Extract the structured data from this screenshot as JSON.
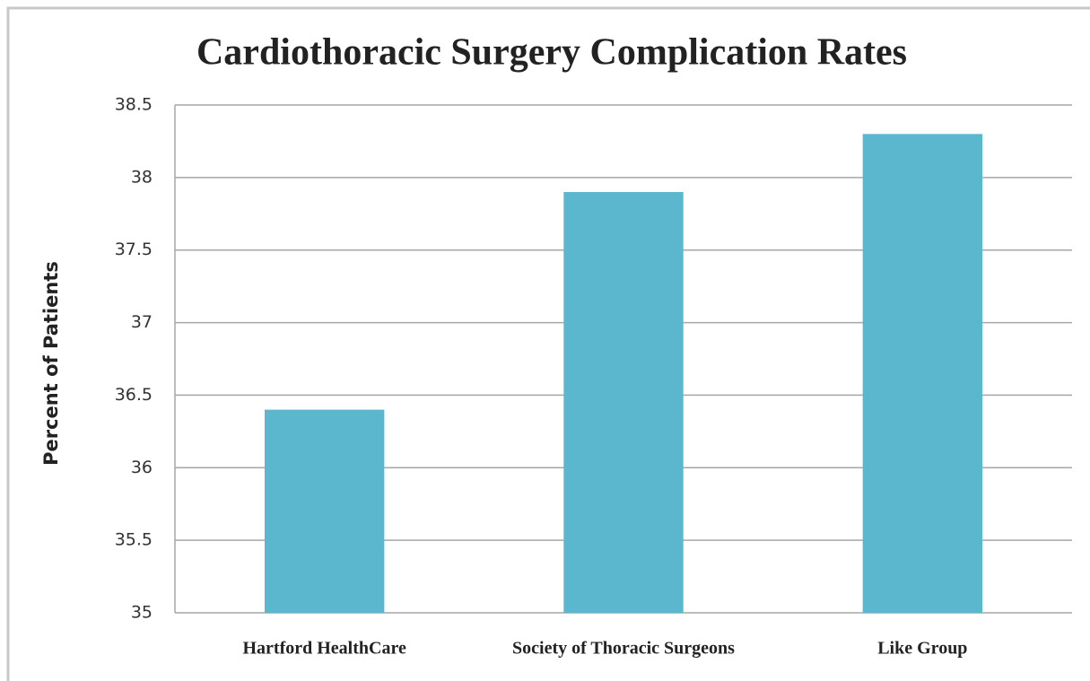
{
  "chart_data": {
    "type": "bar",
    "title": "Cardiothoracic Surgery Complication Rates",
    "ylabel": "Percent of Patients",
    "categories": [
      "Hartford HealthCare",
      "Society of Thoracic Surgeons",
      "Like Group"
    ],
    "values": [
      36.4,
      37.9,
      38.3
    ],
    "color": "#5bb7cd",
    "ylim": [
      35,
      38.5
    ],
    "yticks": [
      35,
      35.5,
      36,
      36.5,
      37,
      37.5,
      38,
      38.5
    ],
    "grid": true
  }
}
